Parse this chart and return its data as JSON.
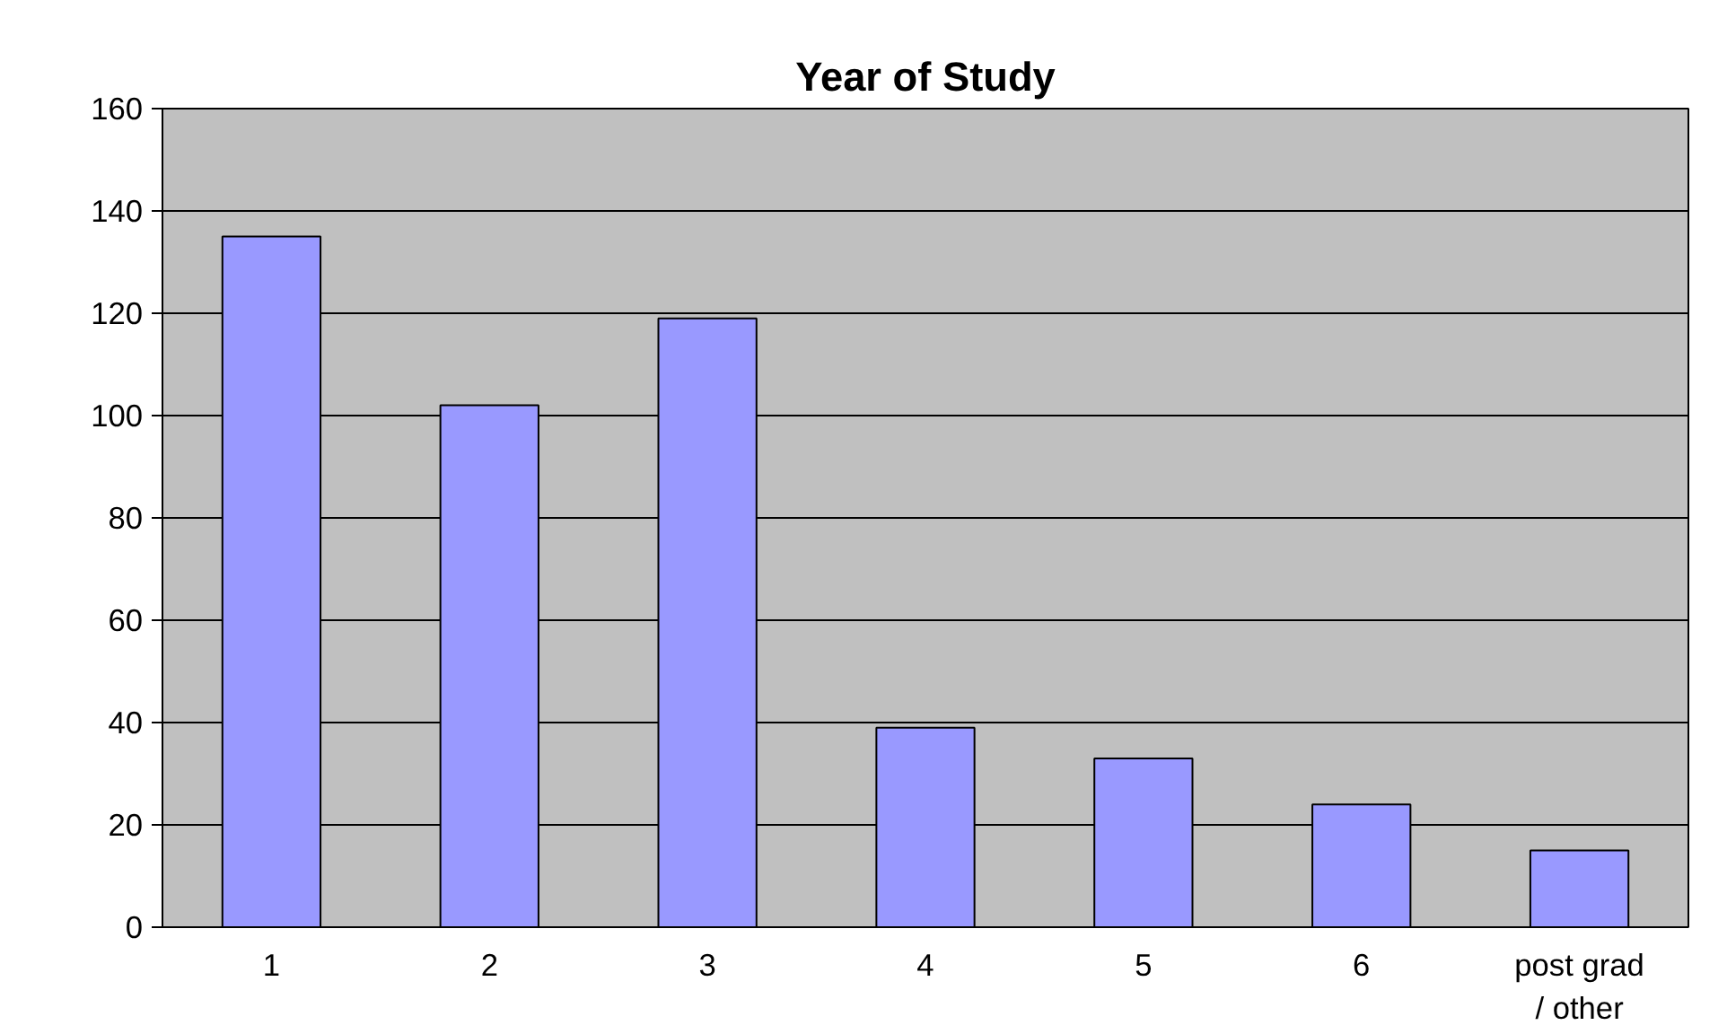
{
  "chart_data": {
    "type": "bar",
    "title": "Year of Study",
    "categories": [
      "1",
      "2",
      "3",
      "4",
      "5",
      "6",
      "post grad / other"
    ],
    "values": [
      135,
      102,
      119,
      39,
      33,
      24,
      15
    ],
    "color": "#9999ff",
    "ylim": [
      0,
      160
    ],
    "yticks": [
      0,
      20,
      40,
      60,
      80,
      100,
      120,
      140,
      160
    ],
    "grid": "y"
  }
}
